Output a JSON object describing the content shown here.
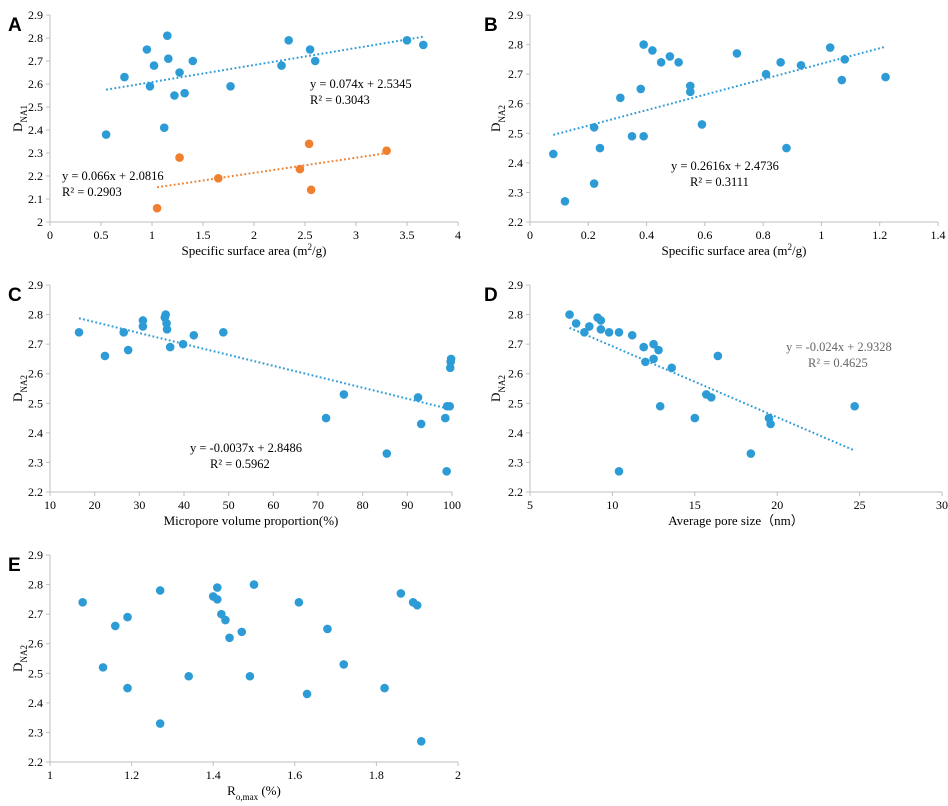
{
  "colors": {
    "blue": "#2C9BD6",
    "orange": "#F07F2E",
    "axis": "#BFBFBF"
  },
  "chart_data": [
    {
      "type": "scatter",
      "panel": "A",
      "xlabel": "Specific surface area (m",
      "xlabel_sup": "2",
      "xlabel_tail": "/g)",
      "ylabel": "D",
      "ylabel_sub": "NA1",
      "xlim": [
        0,
        4
      ],
      "ylim": [
        2,
        2.9
      ],
      "xticks": [
        "0",
        "0.5",
        "1",
        "1.5",
        "2",
        "2.5",
        "3",
        "3.5",
        "4"
      ],
      "yticks": [
        "2",
        "2.1",
        "2.2",
        "2.3",
        "2.4",
        "2.5",
        "2.6",
        "2.7",
        "2.8",
        "2.9"
      ],
      "series": [
        {
          "name": "blue",
          "color": "#2C9BD6",
          "x": [
            0.55,
            0.73,
            0.95,
            0.98,
            1.02,
            1.12,
            1.15,
            1.16,
            1.22,
            1.27,
            1.32,
            1.4,
            1.77,
            2.27,
            2.34,
            2.55,
            2.6,
            3.5,
            3.66
          ],
          "y": [
            2.38,
            2.63,
            2.75,
            2.59,
            2.68,
            2.41,
            2.81,
            2.71,
            2.55,
            2.65,
            2.56,
            2.7,
            2.59,
            2.68,
            2.79,
            2.75,
            2.7,
            2.79,
            2.77
          ],
          "trend": {
            "slope": 0.074,
            "intercept": 2.5345,
            "x_range": [
              0.55,
              3.66
            ],
            "equation": "y = 0.074x + 2.5345",
            "r2": "R² = 0.3043"
          }
        },
        {
          "name": "orange",
          "color": "#F07F2E",
          "x": [
            1.05,
            1.27,
            1.65,
            2.45,
            2.54,
            2.56,
            3.3
          ],
          "y": [
            2.06,
            2.28,
            2.19,
            2.23,
            2.34,
            2.14,
            2.31
          ],
          "trend": {
            "slope": 0.066,
            "intercept": 2.0816,
            "x_range": [
              1.05,
              3.3
            ],
            "equation": "y = 0.066x + 2.0816",
            "r2": "R² = 0.2903"
          }
        }
      ]
    },
    {
      "type": "scatter",
      "panel": "B",
      "xlabel": "Specific surface area (m",
      "xlabel_sup": "2",
      "xlabel_tail": "/g)",
      "ylabel": "D",
      "ylabel_sub": "NA2",
      "xlim": [
        0,
        1.4
      ],
      "ylim": [
        2.2,
        2.9
      ],
      "xticks": [
        "0",
        "0.2",
        "0.4",
        "0.6",
        "0.8",
        "1",
        "1.2",
        "1.4"
      ],
      "yticks": [
        "2.2",
        "2.3",
        "2.4",
        "2.5",
        "2.6",
        "2.7",
        "2.8",
        "2.9"
      ],
      "series": [
        {
          "name": "blue",
          "color": "#2C9BD6",
          "x": [
            0.08,
            0.12,
            0.22,
            0.22,
            0.24,
            0.31,
            0.35,
            0.38,
            0.39,
            0.39,
            0.42,
            0.45,
            0.48,
            0.51,
            0.55,
            0.55,
            0.59,
            0.71,
            0.81,
            0.86,
            0.88,
            0.93,
            1.03,
            1.07,
            1.08,
            1.22
          ],
          "y": [
            2.43,
            2.27,
            2.52,
            2.33,
            2.45,
            2.62,
            2.49,
            2.65,
            2.49,
            2.8,
            2.78,
            2.74,
            2.76,
            2.74,
            2.66,
            2.64,
            2.53,
            2.77,
            2.7,
            2.74,
            2.45,
            2.73,
            2.79,
            2.68,
            2.75,
            2.69
          ],
          "trend": {
            "slope": 0.2616,
            "intercept": 2.4736,
            "x_range": [
              0.08,
              1.22
            ],
            "equation": "y = 0.2616x + 2.4736",
            "r2": "R² = 0.3111"
          }
        }
      ]
    },
    {
      "type": "scatter",
      "panel": "C",
      "xlabel": "Micropore volume proportion(%)",
      "ylabel": "D",
      "ylabel_sub": "NA2",
      "xlim": [
        10,
        100
      ],
      "ylim": [
        2.2,
        2.9
      ],
      "xticks": [
        "10",
        "20",
        "30",
        "40",
        "50",
        "60",
        "70",
        "80",
        "90",
        "100"
      ],
      "yticks": [
        "2.2",
        "2.3",
        "2.4",
        "2.5",
        "2.6",
        "2.7",
        "2.8",
        "2.9"
      ],
      "series": [
        {
          "name": "blue",
          "color": "#2C9BD6",
          "x": [
            16.5,
            22.3,
            26.5,
            27.5,
            30.8,
            30.8,
            35.7,
            35.9,
            36.1,
            36.2,
            36.9,
            39.8,
            42.2,
            48.8,
            71.8,
            75.8,
            85.4,
            92.4,
            93.1,
            98.5,
            98.8,
            98.9,
            99.5,
            99.6,
            99.7,
            99.8
          ],
          "y": [
            2.74,
            2.66,
            2.74,
            2.68,
            2.76,
            2.78,
            2.79,
            2.8,
            2.77,
            2.75,
            2.69,
            2.7,
            2.73,
            2.74,
            2.45,
            2.53,
            2.33,
            2.52,
            2.43,
            2.45,
            2.27,
            2.49,
            2.49,
            2.62,
            2.64,
            2.65
          ],
          "trend": {
            "slope": -0.0037,
            "intercept": 2.8486,
            "x_range": [
              16.5,
              99.8
            ],
            "equation": "y = -0.0037x + 2.8486",
            "r2": "R² = 0.5962"
          }
        }
      ]
    },
    {
      "type": "scatter",
      "panel": "D",
      "xlabel": "Average pore size（nm）",
      "ylabel": "D",
      "ylabel_sub": "NA2",
      "xlim": [
        5,
        30
      ],
      "ylim": [
        2.2,
        2.9
      ],
      "xticks": [
        "5",
        "10",
        "15",
        "20",
        "25",
        "30"
      ],
      "yticks": [
        "2.2",
        "2.3",
        "2.4",
        "2.5",
        "2.6",
        "2.7",
        "2.8",
        "2.9"
      ],
      "series": [
        {
          "name": "blue",
          "color": "#2C9BD6",
          "x": [
            7.4,
            7.8,
            8.3,
            8.6,
            9.1,
            9.3,
            9.3,
            9.8,
            10.4,
            11.2,
            11.9,
            12.0,
            12.5,
            12.5,
            12.8,
            12.9,
            13.6,
            15.0,
            15.7,
            16.0,
            16.4,
            18.4,
            19.5,
            19.6,
            24.7,
            10.4
          ],
          "y": [
            2.8,
            2.77,
            2.74,
            2.76,
            2.79,
            2.78,
            2.75,
            2.74,
            2.74,
            2.73,
            2.69,
            2.64,
            2.7,
            2.65,
            2.68,
            2.49,
            2.62,
            2.45,
            2.53,
            2.52,
            2.66,
            2.33,
            2.45,
            2.43,
            2.49,
            2.27
          ],
          "trend": {
            "slope": -0.024,
            "intercept": 2.9328,
            "x_range": [
              7.4,
              24.7
            ],
            "equation": "y = -0.024x + 2.9328",
            "r2": "R² = 0.4625"
          }
        }
      ]
    },
    {
      "type": "scatter",
      "panel": "E",
      "xlabel": "R",
      "xlabel_sub": "o,max",
      "xlabel_tail": " (%)",
      "ylabel": "D",
      "ylabel_sub": "NA2",
      "xlim": [
        1,
        2
      ],
      "ylim": [
        2.2,
        2.9
      ],
      "xticks": [
        "1",
        "1.2",
        "1.4",
        "1.6",
        "1.8",
        "2"
      ],
      "yticks": [
        "2.2",
        "2.3",
        "2.4",
        "2.5",
        "2.6",
        "2.7",
        "2.8",
        "2.9"
      ],
      "series": [
        {
          "name": "blue",
          "color": "#2C9BD6",
          "x": [
            1.08,
            1.13,
            1.16,
            1.19,
            1.19,
            1.27,
            1.27,
            1.34,
            1.4,
            1.41,
            1.41,
            1.42,
            1.43,
            1.44,
            1.47,
            1.49,
            1.5,
            1.61,
            1.63,
            1.68,
            1.72,
            1.82,
            1.86,
            1.89,
            1.9,
            1.91
          ],
          "y": [
            2.74,
            2.52,
            2.66,
            2.69,
            2.45,
            2.78,
            2.33,
            2.49,
            2.76,
            2.79,
            2.75,
            2.7,
            2.68,
            2.62,
            2.64,
            2.49,
            2.8,
            2.74,
            2.43,
            2.65,
            2.53,
            2.45,
            2.77,
            2.74,
            2.73,
            2.27
          ]
        }
      ]
    }
  ]
}
